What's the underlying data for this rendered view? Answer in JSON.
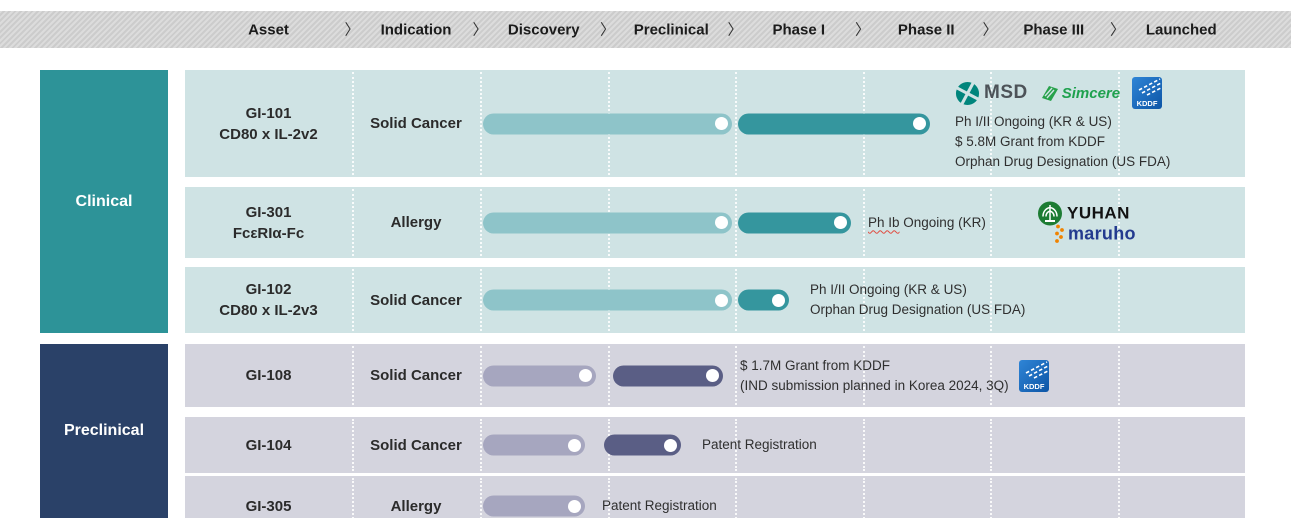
{
  "header": {
    "phases": [
      "Asset",
      "Indication",
      "Discovery",
      "Preclinical",
      "Phase I",
      "Phase II",
      "Phase III",
      "Launched"
    ],
    "separator": "〉"
  },
  "categories": {
    "clinical": "Clinical",
    "preclinical": "Preclinical"
  },
  "logos": {
    "msd": "MSD",
    "simcere": "Simcere",
    "kddf": "KDDF",
    "yuhan": "YUHAN",
    "maruho": "maruho"
  },
  "colors": {
    "clinical_category_bg": "#2d9398",
    "preclinical_category_bg": "#2a4168",
    "clinical_row_bg": "#cfe3e4",
    "preclinical_row_bg": "#d4d4de",
    "clinical_bar_completed": "#8ec4c9",
    "clinical_bar_ongoing": "#35969e",
    "preclinical_bar_completed": "#a6a6bf",
    "preclinical_bar_ongoing": "#5a5e85",
    "bar_end_dot": "#ffffff",
    "header_text": "#1b1b1b",
    "note_text": "#2f2f2f",
    "spellcheck_underline": "#e04a3f",
    "msd_teal": "#00857c",
    "simcere_green": "#1fa14e",
    "kddf_blue": "#1668b8",
    "yuhan_green": "#1d7c33",
    "maruho_navy": "#233a8f",
    "maruho_orange": "#f08300"
  },
  "chart_data": {
    "type": "bar",
    "subtype": "pipeline-gantt",
    "orientation": "horizontal",
    "phase_axis": [
      "Discovery",
      "Preclinical",
      "Phase I",
      "Phase II",
      "Phase III",
      "Launched"
    ],
    "phase_scale_note": "segment start/end are in phase-column units; 0 = start of Discovery, 1 unit = one phase column",
    "rows": [
      {
        "asset": "GI-101",
        "molecule": "CD80 x IL-2v2",
        "indication": "Solid Cancer",
        "category": "Clinical",
        "segments": [
          {
            "start": 0,
            "end": 2,
            "status": "completed"
          },
          {
            "start": 2,
            "end": 3.55,
            "status": "ongoing"
          }
        ],
        "partners": [
          "MSD",
          "Simcere",
          "KDDF"
        ],
        "notes": [
          "Ph I/II Ongoing (KR & US)",
          "$ 5.8M Grant from KDDF",
          "Orphan Drug Designation (US FDA)"
        ]
      },
      {
        "asset": "GI-301",
        "molecule": "FcεRIα-Fc",
        "indication": "Allergy",
        "category": "Clinical",
        "segments": [
          {
            "start": 0,
            "end": 2,
            "status": "completed"
          },
          {
            "start": 2,
            "end": 2.93,
            "status": "ongoing"
          }
        ],
        "partners": [
          "YUHAN",
          "maruho"
        ],
        "notes": [
          "Ph Ib Ongoing (KR)"
        ],
        "note_underlined": "Ph Ib",
        "note_rest": " Ongoing (KR)"
      },
      {
        "asset": "GI-102",
        "molecule": "CD80 x IL-2v3",
        "indication": "Solid Cancer",
        "category": "Clinical",
        "segments": [
          {
            "start": 0,
            "end": 2,
            "status": "completed"
          },
          {
            "start": 2,
            "end": 2.45,
            "status": "ongoing"
          }
        ],
        "partners": [],
        "notes": [
          "Ph I/II Ongoing (KR & US)",
          "Orphan Drug Designation (US FDA)"
        ]
      },
      {
        "asset": "GI-108",
        "indication": "Solid Cancer",
        "category": "Preclinical",
        "segments": [
          {
            "start": 0,
            "end": 0.93,
            "status": "completed"
          },
          {
            "start": 1.02,
            "end": 1.93,
            "status": "ongoing"
          }
        ],
        "partners": [
          "KDDF"
        ],
        "notes": [
          "$ 1.7M Grant from KDDF",
          "(IND submission planned in Korea 2024, 3Q)"
        ]
      },
      {
        "asset": "GI-104",
        "indication": "Solid Cancer",
        "category": "Preclinical",
        "segments": [
          {
            "start": 0,
            "end": 0.85,
            "status": "completed"
          },
          {
            "start": 0.95,
            "end": 1.6,
            "status": "ongoing"
          }
        ],
        "partners": [],
        "notes": [
          "Patent Registration"
        ]
      },
      {
        "asset": "GI-305",
        "indication": "Allergy",
        "category": "Preclinical",
        "segments": [
          {
            "start": 0,
            "end": 0.85,
            "status": "completed"
          }
        ],
        "partners": [],
        "notes": [
          "Patent Registration"
        ]
      }
    ]
  }
}
